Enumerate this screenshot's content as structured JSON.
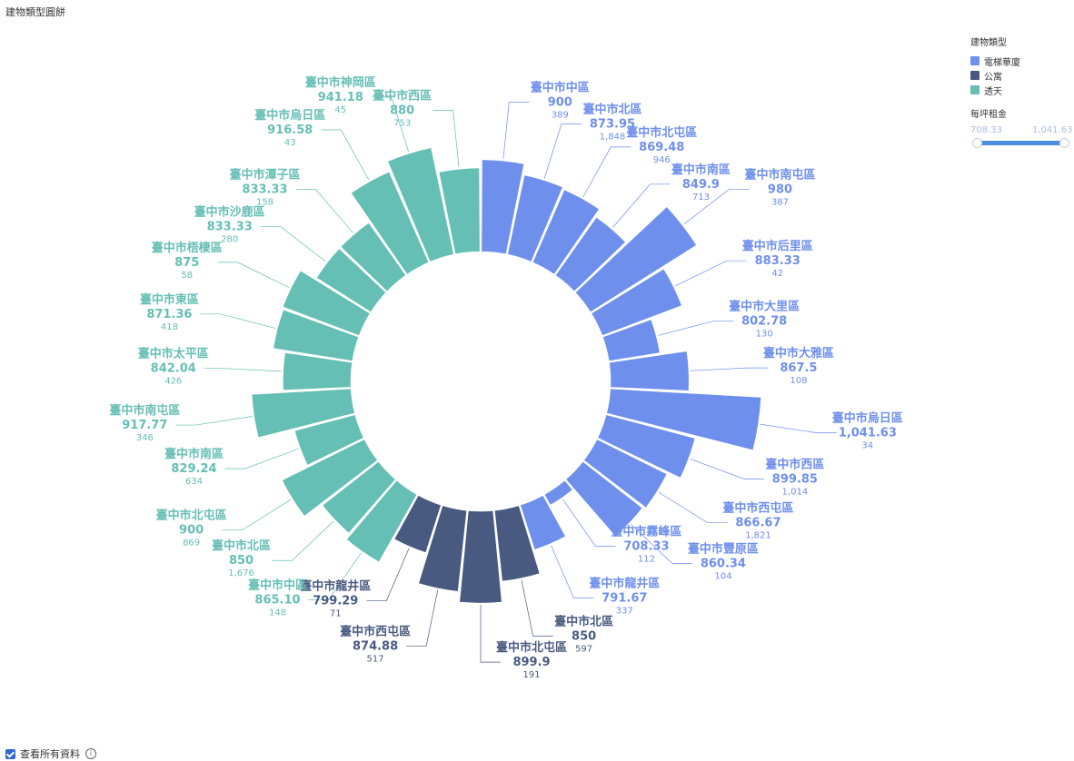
{
  "page": {
    "title": "建物類型圓餅",
    "footer_label": "查看所有資料",
    "info_icon": "i"
  },
  "legend": {
    "title": "建物類型",
    "items": [
      {
        "label": "電梯華廈",
        "color": "#6e8fec"
      },
      {
        "label": "公寓",
        "color": "#485a80"
      },
      {
        "label": "透天",
        "color": "#65bfb5"
      }
    ]
  },
  "slider": {
    "title": "每坪租金",
    "min_label": "708.33",
    "max_label": "1,041.63"
  },
  "chart_data": {
    "type": "bar",
    "layout": "radial",
    "series": [
      {
        "name": "電梯華廈",
        "color": "#6e8fec",
        "labels": [
          "臺中市中區",
          "臺中市北區",
          "臺中市北屯區",
          "臺中市南區",
          "臺中市南屯區",
          "臺中市后里區",
          "臺中市大里區",
          "臺中市大雅區",
          "臺中市烏日區",
          "臺中市西區",
          "臺中市西屯區",
          "臺中市豐原區",
          "臺中市霧峰區",
          "臺中市龍井區"
        ],
        "values": [
          900,
          873.95,
          869.48,
          849.9,
          980,
          883.33,
          802.78,
          867.5,
          1041.63,
          899.85,
          866.67,
          860.34,
          708.33,
          791.67
        ],
        "value_labels": [
          "900",
          "873.95",
          "869.48",
          "849.9",
          "980",
          "883.33",
          "802.78",
          "867.5",
          "1,041.63",
          "899.85",
          "866.67",
          "860.34",
          "708.33",
          "791.67"
        ],
        "counts": [
          "389",
          "1,848",
          "946",
          "713",
          "387",
          "42",
          "130",
          "108",
          "34",
          "1,014",
          "1,821",
          "104",
          "112",
          "337"
        ]
      },
      {
        "name": "公寓",
        "color": "#485a80",
        "labels": [
          "臺中市北區",
          "臺中市北屯區",
          "臺中市西屯區",
          "臺中市龍井區"
        ],
        "values": [
          850,
          899.9,
          874.88,
          799.29
        ],
        "value_labels": [
          "850",
          "899.9",
          "874.88",
          "799.29"
        ],
        "counts": [
          "597",
          "191",
          "517",
          "71"
        ]
      },
      {
        "name": "透天",
        "color": "#65bfb5",
        "labels": [
          "臺中市中區",
          "臺中市北區",
          "臺中市北屯區",
          "臺中市南區",
          "臺中市南屯區",
          "臺中市太平區",
          "臺中市東區",
          "臺中市梧棲區",
          "臺中市沙鹿區",
          "臺中市潭子區",
          "臺中市烏日區",
          "臺中市神岡區",
          "臺中市西區"
        ],
        "values": [
          865.1,
          850,
          900,
          829.24,
          917.77,
          842.04,
          871.36,
          875,
          833.33,
          833.33,
          916.58,
          941.18,
          880
        ],
        "value_labels": [
          "865.10",
          "850",
          "900",
          "829.24",
          "917.77",
          "842.04",
          "871.36",
          "875",
          "833.33",
          "833.33",
          "916.58",
          "941.18",
          "880"
        ],
        "counts": [
          "148",
          "1,676",
          "869",
          "634",
          "346",
          "426",
          "418",
          "58",
          "280",
          "158",
          "43",
          "45",
          "753"
        ]
      }
    ]
  }
}
